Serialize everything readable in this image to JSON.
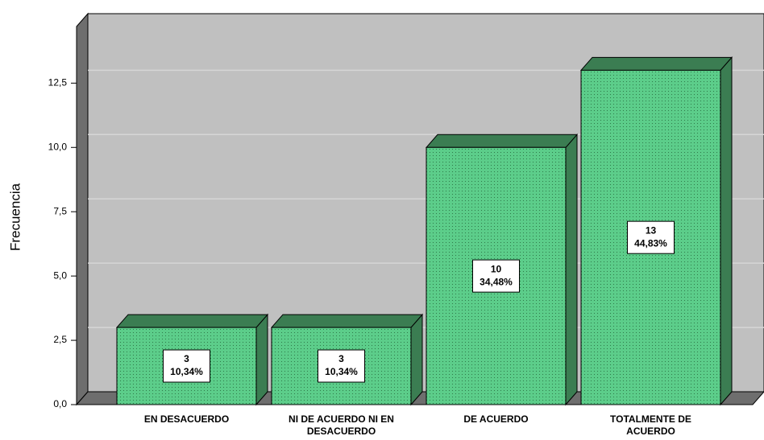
{
  "chart_data": {
    "type": "bar3d",
    "y_label": "Frecuencia",
    "categories": [
      [
        "EN DESACUERDO"
      ],
      [
        "NI DE ACUERDO NI EN",
        "DESACUERDO"
      ],
      [
        "DE ACUERDO"
      ],
      [
        "TOTALMENTE DE",
        "ACUERDO"
      ]
    ],
    "values": [
      3,
      3,
      10,
      13
    ],
    "percentage_labels": [
      "10,34%",
      "10,34%",
      "34,48%",
      "44,83%"
    ],
    "color": "#5ccd8a",
    "ylim": [
      0,
      14.7
    ],
    "yticks": [
      {
        "value": 0,
        "label": "0,0"
      },
      {
        "value": 2.5,
        "label": "2,5"
      },
      {
        "value": 5,
        "label": "5,0"
      },
      {
        "value": 7.5,
        "label": "7,5"
      },
      {
        "value": 10,
        "label": "10,0"
      },
      {
        "value": 12.5,
        "label": "12,5"
      }
    ],
    "grid": true
  }
}
